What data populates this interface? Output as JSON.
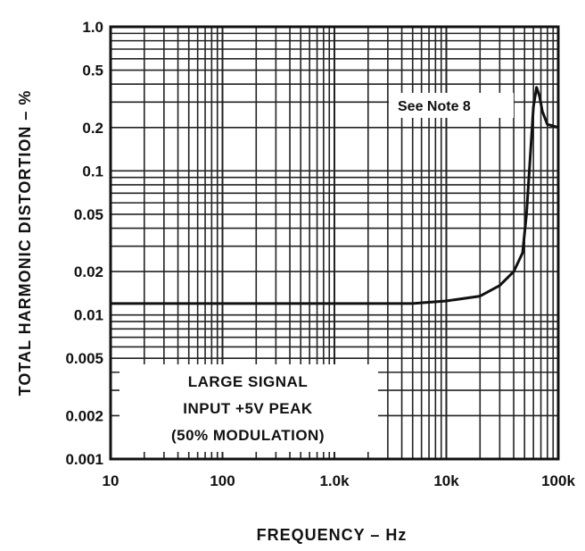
{
  "chart_data": {
    "type": "line",
    "xlabel": "FREQUENCY – Hz",
    "ylabel": "TOTAL HARMONIC DISTORTION – %",
    "x_scale": "log",
    "y_scale": "log",
    "xlim": [
      10,
      100000
    ],
    "ylim": [
      0.001,
      1.0
    ],
    "x_ticks": [
      "10",
      "100",
      "1.0k",
      "10k",
      "100k"
    ],
    "y_ticks": [
      "1.0",
      "0.5",
      "0.2",
      "0.1",
      "0.05",
      "0.02",
      "0.01",
      "0.005",
      "0.002",
      "0.001"
    ],
    "grid": true,
    "annotations": [
      "See Note 8"
    ],
    "legend_text": [
      "LARGE SIGNAL",
      "INPUT +5V PEAK",
      "(50% MODULATION)"
    ],
    "series": [
      {
        "x": [
          10,
          100,
          1000,
          5000,
          10000,
          20000,
          30000,
          40000,
          48000,
          52000,
          56000,
          60000,
          64000,
          68000,
          72000,
          80000,
          90000,
          100000
        ],
        "y": [
          0.012,
          0.012,
          0.012,
          0.012,
          0.0125,
          0.0135,
          0.016,
          0.02,
          0.027,
          0.05,
          0.12,
          0.28,
          0.38,
          0.33,
          0.26,
          0.21,
          0.205,
          0.2
        ]
      }
    ]
  }
}
